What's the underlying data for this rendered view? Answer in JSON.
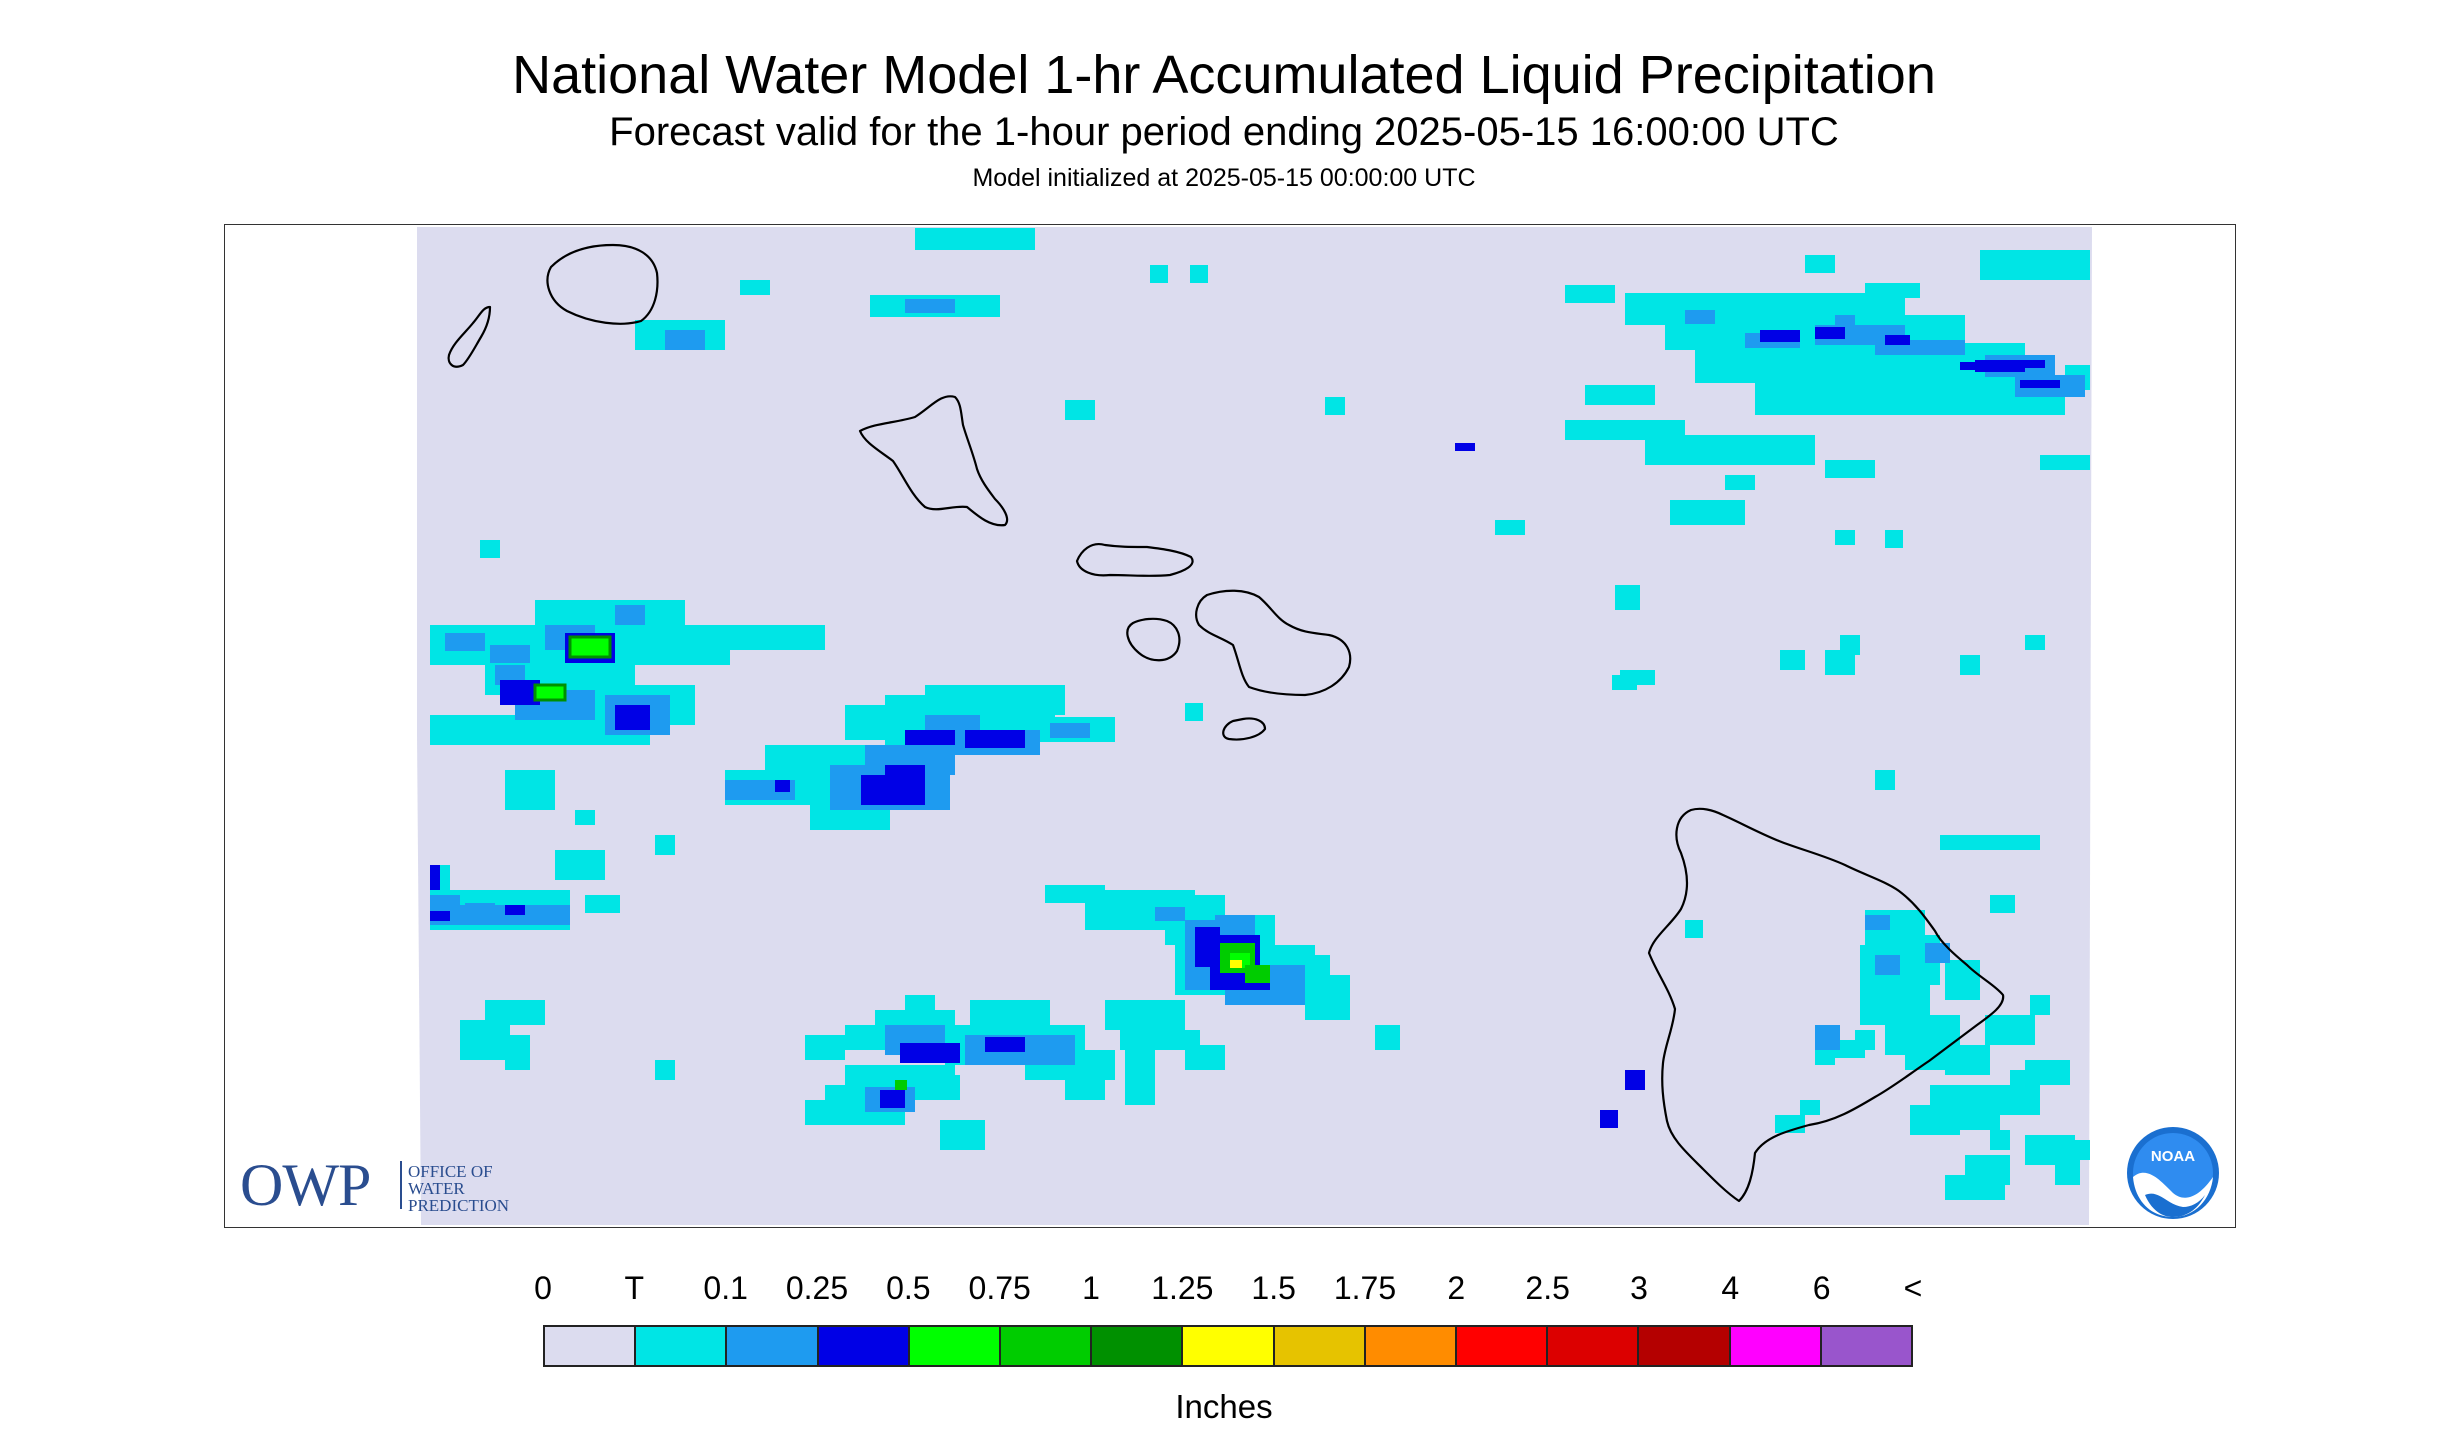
{
  "title": "National Water Model 1-hr Accumulated Liquid Precipitation",
  "subtitle": "Forecast valid for the 1-hour period ending 2025-05-15 16:00:00 UTC",
  "init_text": "Model initialized at 2025-05-15 00:00:00 UTC",
  "owp_logo": {
    "abbr": "OWP",
    "line1": "OFFICE OF",
    "line2": "WATER",
    "line3": "PREDICTION"
  },
  "noaa_logo": {
    "text": "NOAA"
  },
  "colors": {
    "background": "#dcdcef",
    "coast": "#000000",
    "owp_blue": "#2a4d8f"
  },
  "legend": {
    "unit": "Inches",
    "ticks": [
      "0",
      "T",
      "0.1",
      "0.25",
      "0.5",
      "0.75",
      "1",
      "1.25",
      "1.5",
      "1.75",
      "2",
      "2.5",
      "3",
      "4",
      "6",
      "<"
    ],
    "colors": [
      "#dcdcef",
      "#00e5e5",
      "#1e9bf0",
      "#0000e6",
      "#00ff00",
      "#00cc00",
      "#009000",
      "#ffff00",
      "#e6c300",
      "#ff8c00",
      "#ff0000",
      "#dc0000",
      "#b40000",
      "#ff00ff",
      "#9955cc"
    ]
  }
}
